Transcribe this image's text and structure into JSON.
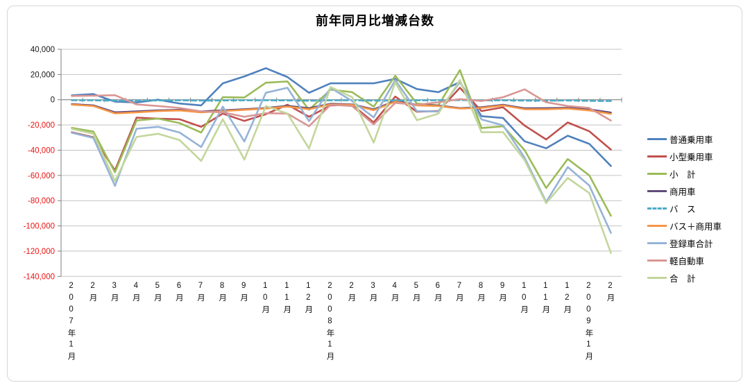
{
  "title": "前年同月比増減台数",
  "chart_data": {
    "type": "line",
    "title": "前年同月比増減台数",
    "categories": [
      "2007年1月",
      "2月",
      "3月",
      "4月",
      "5月",
      "6月",
      "7月",
      "8月",
      "9月",
      "10月",
      "11月",
      "12月",
      "2008年1月",
      "2月",
      "3月",
      "4月",
      "5月",
      "6月",
      "7月",
      "8月",
      "9月",
      "10月",
      "11月",
      "12月",
      "2009年1月",
      "2月"
    ],
    "series": [
      {
        "name": "普通乗用車",
        "color": "#4F81BD",
        "style": "solid",
        "values": [
          3500,
          4500,
          -1500,
          -2200,
          0,
          -3000,
          -4500,
          13000,
          18500,
          25000,
          18000,
          5500,
          13000,
          13000,
          13000,
          16500,
          8500,
          6000,
          14000,
          -13000,
          -14500,
          -33000,
          -38500,
          -28500,
          -35000,
          -52500
        ]
      },
      {
        "name": "小型乗用車",
        "color": "#C0504D",
        "style": "solid",
        "values": [
          -25800,
          -29800,
          -56000,
          -14200,
          -15000,
          -15500,
          -21500,
          -11000,
          -16800,
          -11500,
          -4000,
          -13500,
          -4500,
          -4000,
          -18000,
          2500,
          -9500,
          -9000,
          9500,
          -9000,
          -6000,
          -20500,
          -31500,
          -18000,
          -25000,
          -39500
        ]
      },
      {
        "name": "小　計",
        "color": "#9BBB59",
        "style": "solid",
        "values": [
          -22300,
          -25300,
          -57500,
          -16400,
          -15000,
          -18500,
          -26000,
          2000,
          1700,
          13500,
          14500,
          -8000,
          8000,
          6000,
          -5500,
          19000,
          -3000,
          -4500,
          23500,
          -22500,
          -21000,
          -40000,
          -70000,
          -47000,
          -60000,
          -92000
        ]
      },
      {
        "name": "商用車",
        "color": "#604A7B",
        "style": "solid",
        "values": [
          -3500,
          -4500,
          -10000,
          -9300,
          -8400,
          -8000,
          -9300,
          -8400,
          -7500,
          -6600,
          -4900,
          -6700,
          -3200,
          -3700,
          -7600,
          -1000,
          -4000,
          -4600,
          -6700,
          -5900,
          -4000,
          -6800,
          -6700,
          -6400,
          -7600,
          -10200
        ]
      },
      {
        "name": "バ　ス",
        "color": "#4BACC6",
        "style": "dashed",
        "values": [
          -400,
          -500,
          -800,
          -700,
          -600,
          -500,
          -700,
          -600,
          -500,
          -400,
          -600,
          -800,
          -500,
          -400,
          -700,
          -600,
          -500,
          -400,
          -300,
          -600,
          -500,
          -700,
          -800,
          -600,
          -900,
          -1000
        ]
      },
      {
        "name": "バス＋商用車",
        "color": "#F79646",
        "style": "solid",
        "values": [
          -3900,
          -5000,
          -10800,
          -10000,
          -9000,
          -8500,
          -10000,
          -9000,
          -8000,
          -7000,
          -5500,
          -7500,
          -3700,
          -4100,
          -8300,
          -1600,
          -4500,
          -5000,
          -7000,
          -6500,
          -4500,
          -7500,
          -7500,
          -7000,
          -8500,
          -11200
        ]
      },
      {
        "name": "登録車合計",
        "color": "#95B3D7",
        "style": "solid",
        "values": [
          -26200,
          -30300,
          -68300,
          -23000,
          -21500,
          -26000,
          -37500,
          -5500,
          -33100,
          5500,
          9500,
          -17000,
          9500,
          -1000,
          -14000,
          15600,
          -9000,
          -9400,
          14000,
          -15600,
          -20300,
          -46000,
          -81000,
          -53400,
          -68000,
          -105500
        ]
      },
      {
        "name": "軽自動車",
        "color": "#D99694",
        "style": "solid",
        "values": [
          3000,
          3200,
          3600,
          -3700,
          -5000,
          -6500,
          -9200,
          -10000,
          -13500,
          -10700,
          -11000,
          -21000,
          -4000,
          -5000,
          -19500,
          -2500,
          -4000,
          -2000,
          500,
          -1000,
          2000,
          8200,
          -2000,
          -5000,
          -6500,
          -16500
        ]
      },
      {
        "name": "合　計",
        "color": "#C3D69B",
        "style": "solid",
        "values": [
          -23200,
          -27000,
          -64500,
          -29500,
          -27000,
          -32000,
          -48500,
          -15500,
          -47500,
          -5000,
          -11000,
          -38700,
          10000,
          2000,
          -34000,
          13800,
          -16200,
          -11000,
          15500,
          -25800,
          -25800,
          -48000,
          -82000,
          -62000,
          -74000,
          -121500
        ]
      }
    ],
    "ylim": [
      -140000,
      40000
    ],
    "ytick_step": 20000,
    "yticks": [
      40000,
      20000,
      0,
      -20000,
      -40000,
      -60000,
      -80000,
      -100000,
      -120000,
      -140000
    ],
    "grid": "horizontal",
    "legend_position": "right",
    "axis_colors": {
      "positive_label": "#151515",
      "negative_label": "#ee1111",
      "gridline": "#c3c3c3",
      "axis_line": "#7f7f7f"
    }
  }
}
